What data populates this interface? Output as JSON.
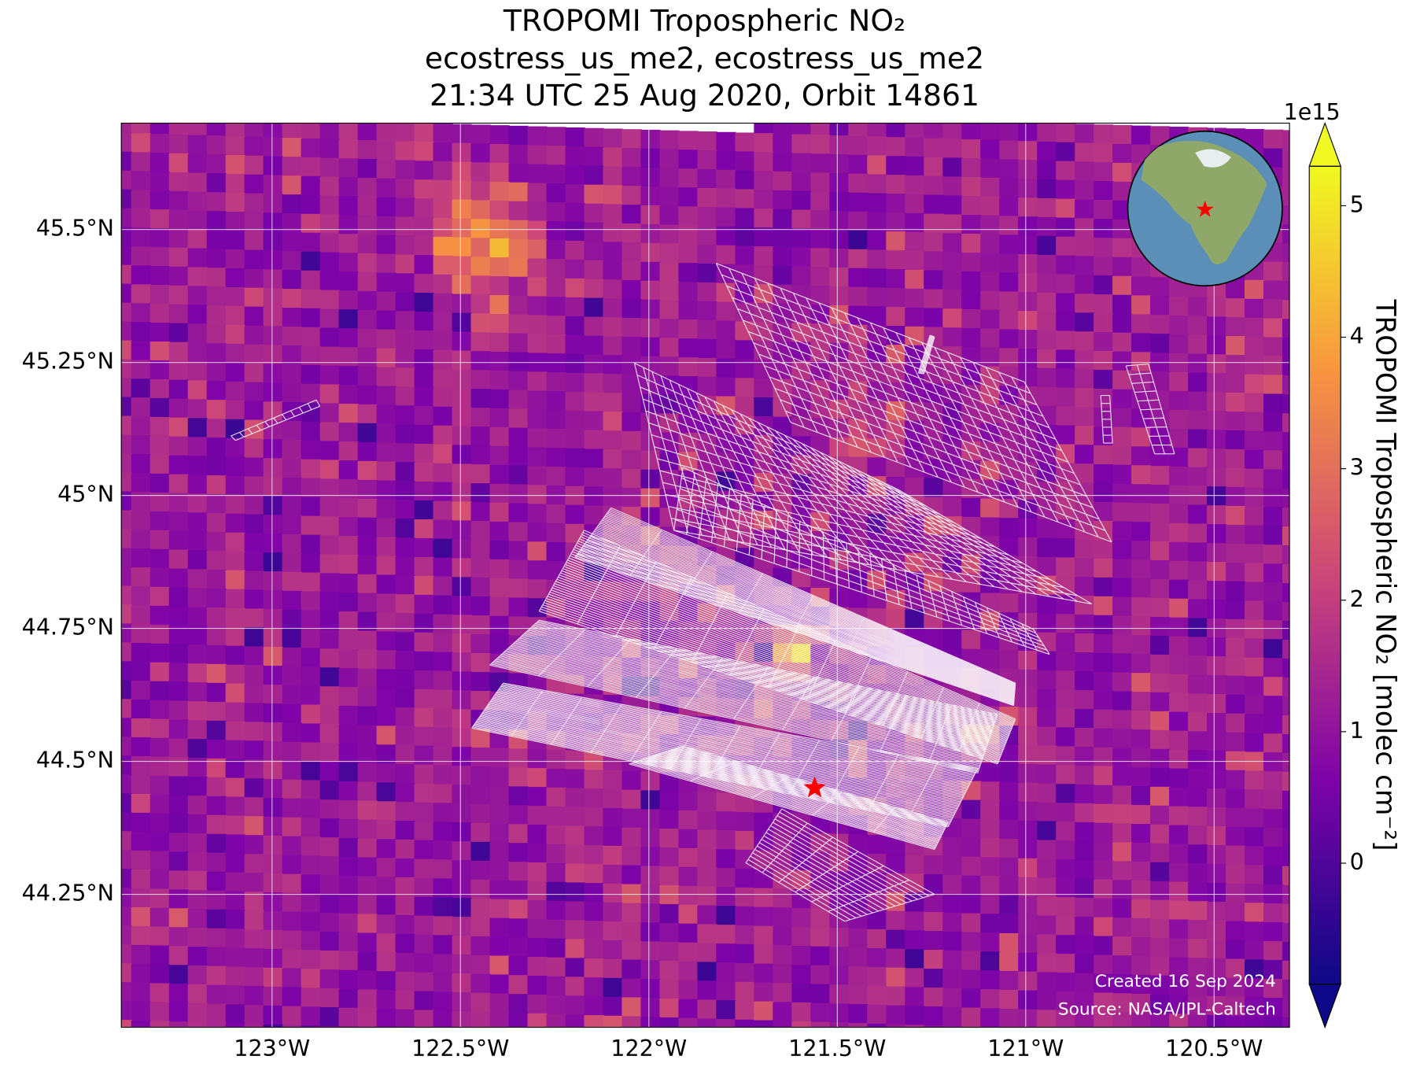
{
  "chart_data": {
    "type": "map",
    "title": [
      "TROPOMI Tropospheric NO₂",
      "ecostress_us_me2, ecostress_us_me2",
      "21:34 UTC 25 Aug 2020, Orbit 14861"
    ],
    "xlim": [
      -123.4,
      -120.3
    ],
    "xticks": [
      {
        "value": -123,
        "label": "123°W"
      },
      {
        "value": -122.5,
        "label": "122.5°W"
      },
      {
        "value": -122,
        "label": "122°W"
      },
      {
        "value": -121.5,
        "label": "121.5°W"
      },
      {
        "value": -121,
        "label": "121°W"
      },
      {
        "value": -120.5,
        "label": "120.5°W"
      }
    ],
    "ylim": [
      44.0,
      45.7
    ],
    "yticks": [
      {
        "value": 44.25,
        "label": "44.25°N"
      },
      {
        "value": 44.5,
        "label": "44.5°N"
      },
      {
        "value": 44.75,
        "label": "44.75°N"
      },
      {
        "value": 45,
        "label": "45°N"
      },
      {
        "value": 45.25,
        "label": "45.25°N"
      },
      {
        "value": 45.5,
        "label": "45.5°N"
      }
    ],
    "grid": true,
    "marker": {
      "lon": -121.56,
      "lat": 44.45,
      "color": "#ff0000"
    },
    "colorbar": {
      "label": "TROPOMI Tropospheric NO₂ [molec cm⁻²]",
      "exponent_label": "1e15",
      "clim": [
        -0.92,
        5.3
      ],
      "ticks": [
        0,
        1,
        2,
        3,
        4,
        5
      ],
      "colormap": "plasma"
    },
    "credits": [
      "Created 16 Sep 2024",
      "Source: NASA/JPL-Caltech"
    ]
  }
}
